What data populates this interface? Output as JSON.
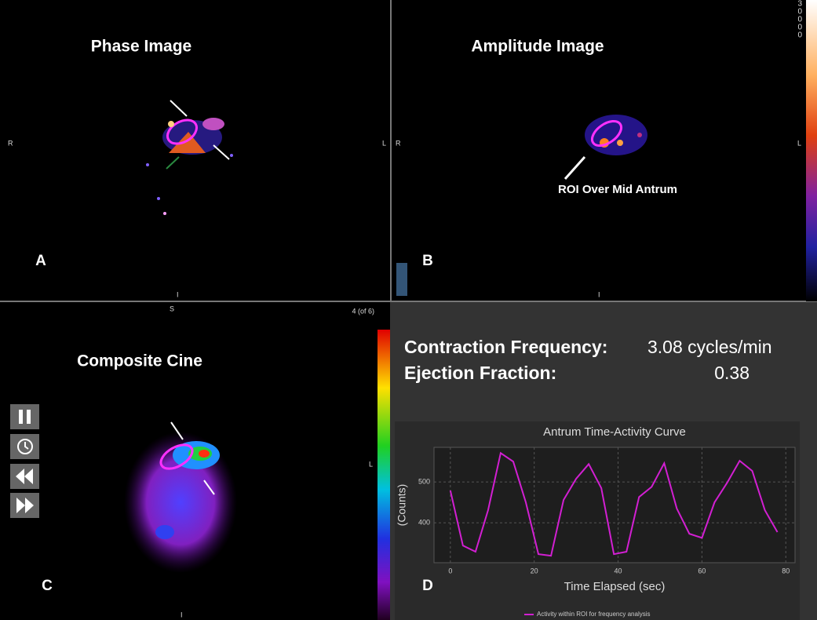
{
  "panel_a": {
    "title": "Phase Image",
    "letter": "A",
    "left": "R",
    "right": "L",
    "bottom": "I"
  },
  "panel_b": {
    "title": "Amplitude Image",
    "letter": "B",
    "left": "R",
    "right": "L",
    "bottom": "I",
    "annotation": "ROI Over Mid Antrum",
    "scale_digits": [
      "3",
      "0",
      "0",
      "0",
      "0"
    ]
  },
  "panel_c": {
    "title": "Composite Cine",
    "letter": "C",
    "top": "S",
    "right": "L",
    "bottom": "I",
    "frame": "4 (of 6)"
  },
  "panel_d": {
    "letter": "D",
    "frequency_label": "Contraction Frequency:",
    "frequency_value": "3.08 cycles/min",
    "ef_label": "Ejection Fraction:",
    "ef_value": "0.38"
  },
  "chart_data": {
    "type": "line",
    "title": "Antrum Time-Activity Curve",
    "x_label": "Time Elapsed (sec)",
    "y_label": "(Counts)",
    "x": [
      0,
      3,
      6,
      9,
      12,
      15,
      18,
      21,
      24,
      27,
      30,
      33,
      36,
      39,
      42,
      45,
      48,
      51,
      54,
      57,
      60,
      63,
      66,
      69,
      72,
      75,
      78
    ],
    "series": [
      {
        "name": "Activity within ROI for frequency analysis",
        "color": "#d21fd2",
        "values": [
          479,
          344,
          329,
          431,
          571,
          550,
          450,
          323,
          319,
          456,
          508,
          544,
          485,
          323,
          329,
          463,
          488,
          546,
          435,
          373,
          363,
          450,
          498,
          552,
          527,
          431,
          377
        ]
      }
    ],
    "xlim": [
      -3.9,
      82.2
    ],
    "ylim": [
      302,
      585
    ],
    "xticks": [
      0,
      20,
      40,
      60,
      80
    ],
    "yticks": [
      400,
      500
    ],
    "grid": true
  }
}
